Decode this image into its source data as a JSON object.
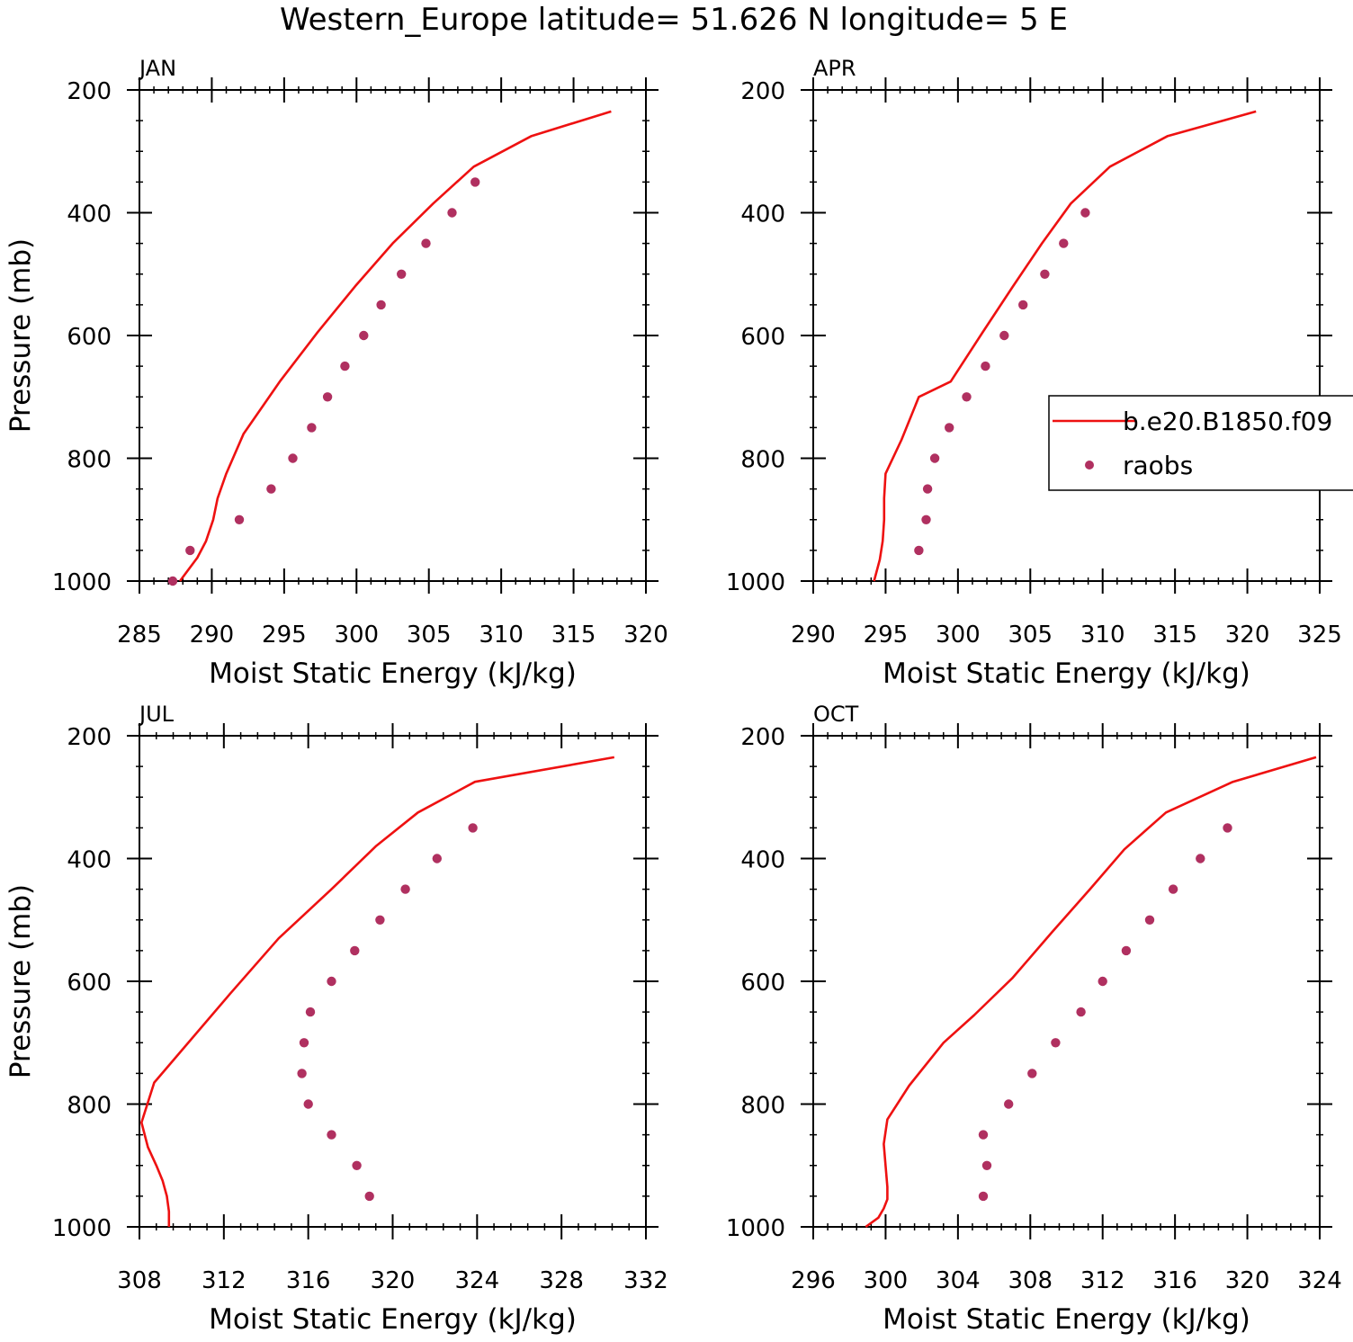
{
  "title": "Western_Europe  latitude= 51.626 N longitude= 5 E",
  "legend": {
    "items": [
      {
        "label": "b.e20.B1850.f09",
        "type": "line",
        "color": "#ee1111"
      },
      {
        "label": "raobs",
        "type": "marker",
        "color": "#b03060"
      }
    ]
  },
  "colors": {
    "model": "#ee1111",
    "obs": "#b03060"
  },
  "chart_data": [
    {
      "type": "line",
      "panel": "JAN",
      "xlabel": "Moist Static Energy (kJ/kg)",
      "ylabel": "Pressure (mb)",
      "xlim": [
        285,
        320
      ],
      "ylim": [
        1000,
        200
      ],
      "xticks": [
        285,
        290,
        295,
        300,
        305,
        310,
        315,
        320
      ],
      "xminor": 1,
      "yticks": [
        200,
        400,
        600,
        800,
        1000
      ],
      "yminor": 50,
      "series": [
        {
          "name": "b.e20.B1850.f09",
          "kind": "line",
          "x": [
            317.6,
            312.1,
            308.1,
            305.3,
            302.5,
            299.9,
            297.3,
            294.7,
            292.2,
            291.0,
            290.4,
            290.1,
            289.6,
            289.0,
            287.8
          ],
          "y": [
            235,
            275,
            325,
            385,
            450,
            520,
            595,
            675,
            760,
            825,
            865,
            900,
            935,
            962,
            1000
          ]
        },
        {
          "name": "raobs",
          "kind": "scatter",
          "x": [
            308.2,
            306.6,
            304.8,
            303.1,
            301.7,
            300.5,
            299.2,
            298.0,
            296.9,
            295.6,
            294.1,
            291.9,
            288.5,
            287.3
          ],
          "y": [
            350,
            400,
            450,
            500,
            550,
            600,
            650,
            700,
            750,
            800,
            850,
            900,
            950,
            1000
          ]
        }
      ]
    },
    {
      "type": "line",
      "panel": "APR",
      "xlabel": "Moist Static Energy (kJ/kg)",
      "ylabel": "",
      "xlim": [
        290,
        325
      ],
      "ylim": [
        1000,
        200
      ],
      "xticks": [
        290,
        295,
        300,
        305,
        310,
        315,
        320,
        325
      ],
      "xminor": 1,
      "yticks": [
        200,
        400,
        600,
        800,
        1000
      ],
      "yminor": 50,
      "series": [
        {
          "name": "b.e20.B1850.f09",
          "kind": "line",
          "x": [
            320.6,
            314.5,
            310.5,
            307.8,
            305.8,
            303.8,
            301.7,
            299.5,
            297.3,
            296.1,
            295.0,
            294.9,
            294.9,
            294.8,
            294.6,
            294.2
          ],
          "y": [
            235,
            275,
            325,
            385,
            450,
            520,
            595,
            675,
            700,
            770,
            825,
            865,
            900,
            935,
            965,
            1000
          ]
        },
        {
          "name": "raobs",
          "kind": "scatter",
          "x": [
            308.8,
            307.3,
            306.0,
            304.5,
            303.2,
            301.9,
            300.6,
            299.4,
            298.4,
            297.9,
            297.8,
            297.3
          ],
          "y": [
            400,
            450,
            500,
            550,
            600,
            650,
            700,
            750,
            800,
            850,
            900,
            950
          ]
        }
      ]
    },
    {
      "type": "line",
      "panel": "JUL",
      "xlabel": "Moist Static Energy (kJ/kg)",
      "ylabel": "Pressure (mb)",
      "xlim": [
        308,
        332
      ],
      "ylim": [
        1000,
        200
      ],
      "xticks": [
        308,
        312,
        316,
        320,
        324,
        328,
        332
      ],
      "xminor": 0.8,
      "yticks": [
        200,
        400,
        600,
        800,
        1000
      ],
      "yminor": 50,
      "series": [
        {
          "name": "b.e20.B1850.f09",
          "kind": "line",
          "x": [
            330.5,
            323.9,
            321.2,
            319.2,
            317.1,
            314.6,
            312.3,
            308.7,
            308.1,
            308.4,
            308.8,
            309.1,
            309.3,
            309.4,
            309.4
          ],
          "y": [
            235,
            275,
            325,
            380,
            450,
            530,
            620,
            765,
            830,
            870,
            900,
            925,
            950,
            975,
            1000
          ]
        },
        {
          "name": "raobs",
          "kind": "scatter",
          "x": [
            323.8,
            322.1,
            320.6,
            319.4,
            318.2,
            317.1,
            316.1,
            315.8,
            315.7,
            316.0,
            317.1,
            318.3,
            318.9
          ],
          "y": [
            350,
            400,
            450,
            500,
            550,
            600,
            650,
            700,
            750,
            800,
            850,
            900,
            950
          ]
        }
      ]
    },
    {
      "type": "line",
      "panel": "OCT",
      "xlabel": "Moist Static Energy (kJ/kg)",
      "ylabel": "",
      "xlim": [
        296,
        324
      ],
      "ylim": [
        1000,
        200
      ],
      "xticks": [
        296,
        300,
        304,
        308,
        312,
        316,
        320,
        324
      ],
      "xminor": 0.8,
      "yticks": [
        200,
        400,
        600,
        800,
        1000
      ],
      "yminor": 50,
      "series": [
        {
          "name": "b.e20.B1850.f09",
          "kind": "line",
          "x": [
            323.8,
            319.2,
            315.5,
            313.2,
            311.3,
            309.2,
            307.0,
            304.9,
            303.2,
            301.3,
            300.1,
            299.9,
            300.0,
            300.1,
            300.1,
            299.9,
            299.6,
            298.9
          ],
          "y": [
            235,
            275,
            325,
            385,
            450,
            520,
            595,
            655,
            700,
            770,
            825,
            865,
            900,
            935,
            955,
            970,
            985,
            1000
          ]
        },
        {
          "name": "raobs",
          "kind": "scatter",
          "x": [
            318.9,
            317.4,
            315.9,
            314.6,
            313.3,
            312.0,
            310.8,
            309.4,
            308.1,
            306.8,
            305.4,
            305.6,
            305.4
          ],
          "y": [
            350,
            400,
            450,
            500,
            550,
            600,
            650,
            700,
            750,
            800,
            850,
            900,
            950
          ]
        }
      ]
    }
  ]
}
